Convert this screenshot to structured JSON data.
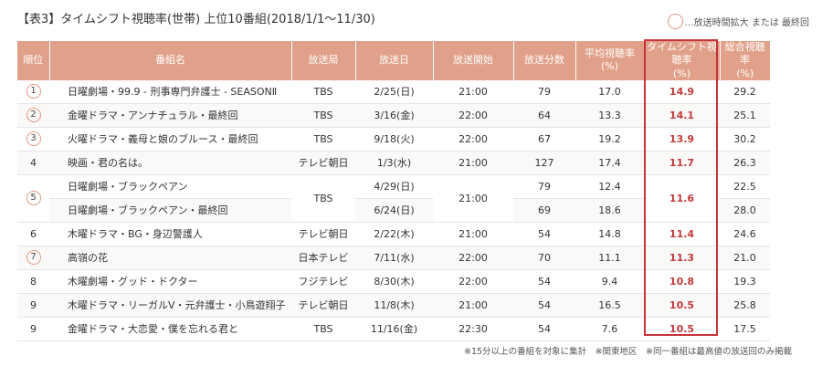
{
  "title": "【表3】タイムシフト視聴率(世帯) 上位10番組(2018/1/1～11/30)",
  "legend_text": "…放送時間拡大 または 最終回",
  "columns": [
    "順位",
    "番組名",
    "放送局",
    "放送日",
    "放送開始",
    "放送分数",
    "平均視聴率(%)",
    "タイムシフト視聴率(%)",
    "総合視聴率(%)"
  ],
  "rows": [
    {
      "rank": "1",
      "circled": true,
      "programs": [
        "日曜劇場・99.9 - 刑事専門弁護士 - SEASONⅡ"
      ],
      "stations": [
        "TBS"
      ],
      "dates": [
        "2/25(日)"
      ],
      "start": "21:00",
      "minutes": [
        "79"
      ],
      "avg": [
        "17.0"
      ],
      "timeshift": "14.9",
      "total": [
        "29.2"
      ]
    },
    {
      "rank": "2",
      "circled": true,
      "programs": [
        "金曜ドラマ・アンナチュラル・最終回"
      ],
      "stations": [
        "TBS"
      ],
      "dates": [
        "3/16(金)"
      ],
      "start": "22:00",
      "minutes": [
        "64"
      ],
      "avg": [
        "13.3"
      ],
      "timeshift": "14.1",
      "total": [
        "25.1"
      ]
    },
    {
      "rank": "3",
      "circled": true,
      "programs": [
        "火曜ドラマ・義母と娘のブルース・最終回"
      ],
      "stations": [
        "TBS"
      ],
      "dates": [
        "9/18(火)"
      ],
      "start": "22:00",
      "minutes": [
        "67"
      ],
      "avg": [
        "19.2"
      ],
      "timeshift": "13.9",
      "total": [
        "30.2"
      ]
    },
    {
      "rank": "4",
      "circled": false,
      "programs": [
        "映画・君の名は。"
      ],
      "stations": [
        "テレビ朝日"
      ],
      "dates": [
        "1/3(水)"
      ],
      "start": "21:00",
      "minutes": [
        "127"
      ],
      "avg": [
        "17.4"
      ],
      "timeshift": "11.7",
      "total": [
        "26.3"
      ]
    },
    {
      "rank": "5",
      "circled": true,
      "programs": [
        "日曜劇場・ブラックペアン",
        "日曜劇場・ブラックペアン・最終回"
      ],
      "stations": [
        "TBS"
      ],
      "dates": [
        "4/29(日)",
        "6/24(日)"
      ],
      "start": "21:00",
      "minutes": [
        "79",
        "69"
      ],
      "avg": [
        "12.4",
        "18.6"
      ],
      "timeshift": "11.6",
      "total": [
        "22.5",
        "28.0"
      ]
    },
    {
      "rank": "6",
      "circled": false,
      "programs": [
        "木曜ドラマ・BG・身辺警護人"
      ],
      "stations": [
        "テレビ朝日"
      ],
      "dates": [
        "2/22(木)"
      ],
      "start": "21:00",
      "minutes": [
        "54"
      ],
      "avg": [
        "14.8"
      ],
      "timeshift": "11.4",
      "total": [
        "24.6"
      ]
    },
    {
      "rank": "7",
      "circled": true,
      "programs": [
        "高嶺の花"
      ],
      "stations": [
        "日本テレビ"
      ],
      "dates": [
        "7/11(水)"
      ],
      "start": "22:00",
      "minutes": [
        "70"
      ],
      "avg": [
        "11.1"
      ],
      "timeshift": "11.3",
      "total": [
        "21.0"
      ]
    },
    {
      "rank": "8",
      "circled": false,
      "programs": [
        "木曜劇場・グッド・ドクター"
      ],
      "stations": [
        "フジテレビ"
      ],
      "dates": [
        "8/30(木)"
      ],
      "start": "22:00",
      "minutes": [
        "54"
      ],
      "avg": [
        "9.4"
      ],
      "timeshift": "10.8",
      "total": [
        "19.3"
      ]
    },
    {
      "rank": "9",
      "circled": false,
      "programs": [
        "木曜ドラマ・リーガルV・元弁護士・小鳥遊翔子"
      ],
      "stations": [
        "テレビ朝日"
      ],
      "dates": [
        "11/8(木)"
      ],
      "start": "21:00",
      "minutes": [
        "54"
      ],
      "avg": [
        "16.5"
      ],
      "timeshift": "10.5",
      "total": [
        "25.8"
      ]
    },
    {
      "rank": "9",
      "circled": false,
      "programs": [
        "金曜ドラマ・大恋愛・僕を忘れる君と"
      ],
      "stations": [
        "TBS"
      ],
      "dates": [
        "11/16(金)"
      ],
      "start": "22:30",
      "minutes": [
        "54"
      ],
      "avg": [
        "7.6"
      ],
      "timeshift": "10.5",
      "total": [
        "17.5"
      ]
    }
  ],
  "notes": "※15分以上の番組を対象に集計　※関東地区　※同一番組は最高値の放送回のみ掲載",
  "colors": {
    "header_bg": "#e1a089",
    "highlight_border": "#c6333a",
    "timeshift_text": "#c33a3a",
    "circle": "#e29882"
  }
}
